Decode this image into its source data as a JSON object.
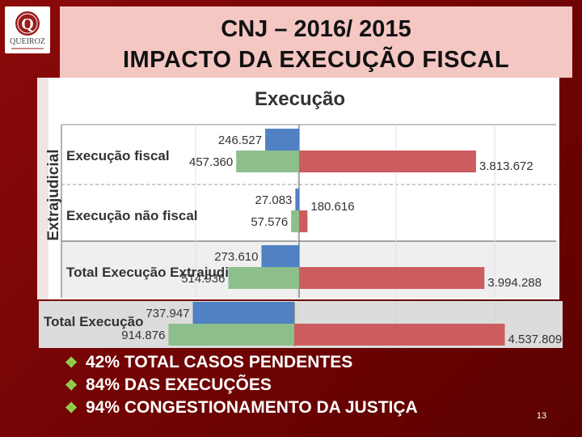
{
  "slide": {
    "title_line1": "CNJ – 2016/ 2015",
    "title_line2": "IMPACTO DA EXECUÇÃO FISCAL",
    "page_number": "13",
    "logo": {
      "text": "QUEIROZ",
      "emblem_letter": "Q",
      "brand_color": "#9b1b1b"
    },
    "bullet_icon": "diamond-bullet-icon",
    "bullets": [
      "42% TOTAL CASOS PENDENTES",
      "84% DAS EXECUÇÕES",
      "94% CONGESTIONAMENTO DA JUSTIÇA"
    ]
  },
  "chart_data": {
    "type": "bar",
    "title": "Execução",
    "group_label": "Extrajudicial",
    "categories": [
      "Execução fiscal",
      "Execução não fiscal",
      "Total Execução Extrajudicial",
      "Total Execução"
    ],
    "series": [
      {
        "color": "#4f81c3",
        "direction": "left",
        "values": [
          246527,
          27083,
          273610,
          737947
        ],
        "labels": [
          "246.527",
          "27.083",
          "273.610",
          "737.947"
        ]
      },
      {
        "color": "#8cbf8c",
        "direction": "left",
        "values": [
          457360,
          57576,
          514936,
          914876
        ],
        "labels": [
          "457.360",
          "57.576",
          "514.936",
          "914.876"
        ]
      },
      {
        "color": "#cd5c5e",
        "direction": "right",
        "values": [
          3813672,
          180616,
          3994288,
          4537809
        ],
        "labels": [
          "3.813.672",
          "180.616",
          "3.994.288",
          "4.537.809"
        ]
      }
    ],
    "grid": true,
    "colors": {
      "blue": "#4f81c3",
      "green": "#8cbf8c",
      "red": "#cd5c5e"
    }
  }
}
